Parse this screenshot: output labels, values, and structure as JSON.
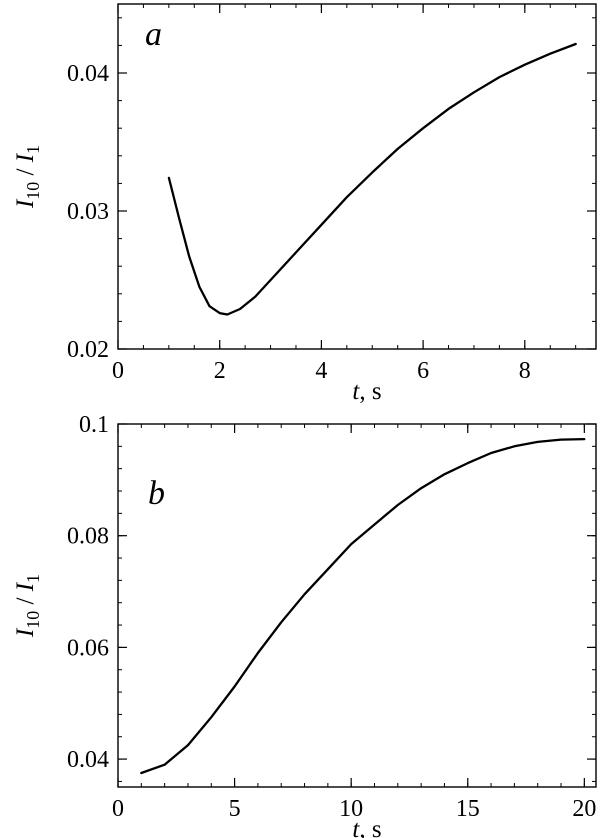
{
  "chart_data": [
    {
      "type": "line",
      "panel_label": "a",
      "xlabel": {
        "var": "t",
        "unit": ", s"
      },
      "ylabel": {
        "num": "I",
        "num_sub": "10",
        "sep": " / ",
        "den": "I",
        "den_sub": "1"
      },
      "xlim": [
        0,
        9.4
      ],
      "ylim": [
        0.02,
        0.045
      ],
      "xticks": [
        0,
        2,
        4,
        6,
        8
      ],
      "yticks": [
        0.02,
        0.03,
        0.04
      ],
      "xtick_labels": [
        "0",
        "2",
        "4",
        "6",
        "8"
      ],
      "ytick_labels": [
        "0.02",
        "0.03",
        "0.04"
      ],
      "series": [
        {
          "x": [
            1.0,
            1.2,
            1.4,
            1.6,
            1.8,
            2.0,
            2.15,
            2.4,
            2.7,
            3.0,
            3.5,
            4.0,
            4.5,
            5.0,
            5.5,
            6.0,
            6.5,
            7.0,
            7.5,
            8.0,
            8.5,
            9.0
          ],
          "y": [
            0.0324,
            0.0295,
            0.0267,
            0.0245,
            0.0231,
            0.0226,
            0.0225,
            0.0229,
            0.0238,
            0.025,
            0.027,
            0.029,
            0.031,
            0.0328,
            0.0345,
            0.036,
            0.0374,
            0.0386,
            0.0397,
            0.0406,
            0.0414,
            0.0421
          ]
        }
      ]
    },
    {
      "type": "line",
      "panel_label": "b",
      "xlabel": {
        "var": "t",
        "unit": ", s"
      },
      "ylabel": {
        "num": "I",
        "num_sub": "10",
        "sep": " / ",
        "den": "I",
        "den_sub": "1"
      },
      "xlim": [
        0,
        20.5
      ],
      "ylim": [
        0.035,
        0.1
      ],
      "xticks": [
        0,
        5,
        10,
        15,
        20
      ],
      "yticks": [
        0.04,
        0.06,
        0.08,
        0.1
      ],
      "xtick_labels": [
        "0",
        "5",
        "10",
        "15",
        "20"
      ],
      "ytick_labels": [
        "0.04",
        "0.06",
        "0.08",
        "0.1"
      ],
      "series": [
        {
          "x": [
            1,
            2,
            3,
            4,
            5,
            6,
            7,
            8,
            9,
            10,
            11,
            12,
            13,
            14,
            15,
            16,
            17,
            18,
            19,
            20
          ],
          "y": [
            0.0375,
            0.039,
            0.0425,
            0.0475,
            0.053,
            0.059,
            0.0645,
            0.0695,
            0.074,
            0.0785,
            0.082,
            0.0855,
            0.0885,
            0.091,
            0.093,
            0.0948,
            0.096,
            0.0968,
            0.0972,
            0.0973
          ]
        }
      ]
    }
  ]
}
